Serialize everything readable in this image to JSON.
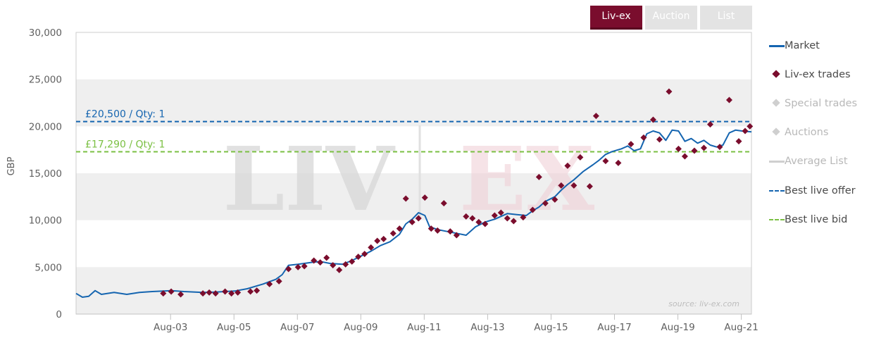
{
  "tabs": [
    {
      "label": "Liv-ex",
      "active": true
    },
    {
      "label": "Auction",
      "active": false
    },
    {
      "label": "List",
      "active": false
    }
  ],
  "watermark": {
    "text": "LIV",
    "text2": "EX"
  },
  "source": "source: liv-ex.com",
  "legend": [
    {
      "label": "Market",
      "kind": "line",
      "color": "#1565b0",
      "dim": false
    },
    {
      "label": "Liv-ex trades",
      "kind": "diamond",
      "color": "#7a0d2d",
      "dim": false
    },
    {
      "label": "Special trades",
      "kind": "diamond",
      "color": "#cfcfcf",
      "dim": true
    },
    {
      "label": "Auctions",
      "kind": "diamond",
      "color": "#cfcfcf",
      "dim": true
    },
    {
      "label": "Average List",
      "kind": "line",
      "color": "#cfcfcf",
      "dim": true
    },
    {
      "label": "Best live offer",
      "kind": "dash",
      "color": "#1565b0",
      "dim": false
    },
    {
      "label": "Best live bid",
      "kind": "dash",
      "color": "#7bc043",
      "dim": false
    }
  ],
  "chart_data": {
    "type": "line",
    "ylabel": "GBP",
    "ylim": [
      0,
      30000
    ],
    "yticks": [
      0,
      5000,
      10000,
      15000,
      20000,
      25000,
      30000
    ],
    "ytick_labels": [
      "0",
      "5,000",
      "10,000",
      "15,000",
      "20,000",
      "25,000",
      "30,000"
    ],
    "xlim": [
      2000.6,
      2021.9
    ],
    "xticks": [
      2003.58,
      2005.58,
      2007.58,
      2009.58,
      2011.58,
      2013.58,
      2015.58,
      2017.58,
      2019.58,
      2021.58
    ],
    "xtick_labels": [
      "Aug-03",
      "Aug-05",
      "Aug-07",
      "Aug-09",
      "Aug-11",
      "Aug-13",
      "Aug-15",
      "Aug-17",
      "Aug-19",
      "Aug-21"
    ],
    "grid": true,
    "legend_position": "right",
    "colors": {
      "market": "#1565b0",
      "trades": "#7a0d2d",
      "offer": "#1565b0",
      "bid": "#7bc043"
    },
    "best_live_offer": {
      "value": 20500,
      "label": "£20,500 / Qty: 1"
    },
    "best_live_bid": {
      "value": 17290,
      "label": "£17,290 / Qty: 1"
    },
    "series": [
      {
        "name": "Market",
        "points": [
          [
            2000.6,
            2200
          ],
          [
            2000.8,
            1800
          ],
          [
            2001.0,
            1900
          ],
          [
            2001.2,
            2500
          ],
          [
            2001.4,
            2100
          ],
          [
            2001.8,
            2300
          ],
          [
            2002.2,
            2100
          ],
          [
            2002.6,
            2300
          ],
          [
            2003.0,
            2400
          ],
          [
            2003.6,
            2500
          ],
          [
            2004.0,
            2400
          ],
          [
            2004.6,
            2300
          ],
          [
            2005.0,
            2350
          ],
          [
            2005.6,
            2450
          ],
          [
            2006.0,
            2700
          ],
          [
            2006.5,
            3200
          ],
          [
            2006.9,
            3700
          ],
          [
            2007.1,
            4200
          ],
          [
            2007.3,
            5200
          ],
          [
            2007.6,
            5300
          ],
          [
            2008.0,
            5500
          ],
          [
            2008.3,
            5600
          ],
          [
            2008.6,
            5400
          ],
          [
            2009.0,
            5300
          ],
          [
            2009.3,
            5700
          ],
          [
            2009.6,
            6200
          ],
          [
            2009.9,
            6700
          ],
          [
            2010.2,
            7300
          ],
          [
            2010.5,
            7700
          ],
          [
            2010.8,
            8500
          ],
          [
            2011.0,
            9600
          ],
          [
            2011.2,
            10100
          ],
          [
            2011.4,
            10800
          ],
          [
            2011.6,
            10500
          ],
          [
            2011.75,
            9300
          ],
          [
            2012.0,
            9000
          ],
          [
            2012.3,
            8800
          ],
          [
            2012.6,
            8600
          ],
          [
            2012.9,
            8400
          ],
          [
            2013.2,
            9300
          ],
          [
            2013.5,
            9800
          ],
          [
            2013.8,
            10100
          ],
          [
            2014.0,
            10400
          ],
          [
            2014.2,
            10700
          ],
          [
            2014.5,
            10600
          ],
          [
            2014.8,
            10500
          ],
          [
            2015.0,
            11000
          ],
          [
            2015.2,
            11400
          ],
          [
            2015.4,
            12000
          ],
          [
            2015.7,
            12500
          ],
          [
            2015.9,
            13200
          ],
          [
            2016.1,
            13800
          ],
          [
            2016.3,
            14300
          ],
          [
            2016.6,
            15200
          ],
          [
            2016.9,
            15900
          ],
          [
            2017.1,
            16400
          ],
          [
            2017.3,
            17000
          ],
          [
            2017.5,
            17300
          ],
          [
            2017.8,
            17600
          ],
          [
            2018.0,
            17900
          ],
          [
            2018.2,
            17400
          ],
          [
            2018.4,
            17600
          ],
          [
            2018.6,
            19200
          ],
          [
            2018.8,
            19500
          ],
          [
            2019.0,
            19300
          ],
          [
            2019.2,
            18500
          ],
          [
            2019.4,
            19600
          ],
          [
            2019.6,
            19500
          ],
          [
            2019.8,
            18400
          ],
          [
            2020.0,
            18700
          ],
          [
            2020.2,
            18200
          ],
          [
            2020.4,
            18500
          ],
          [
            2020.6,
            18000
          ],
          [
            2020.8,
            17800
          ],
          [
            2021.0,
            18000
          ],
          [
            2021.2,
            19300
          ],
          [
            2021.4,
            19600
          ],
          [
            2021.6,
            19500
          ],
          [
            2021.9,
            19400
          ]
        ]
      },
      {
        "name": "Liv-ex trades",
        "points": [
          [
            2003.35,
            2200
          ],
          [
            2003.6,
            2400
          ],
          [
            2003.9,
            2100
          ],
          [
            2004.6,
            2200
          ],
          [
            2004.8,
            2300
          ],
          [
            2005.0,
            2200
          ],
          [
            2005.3,
            2400
          ],
          [
            2005.5,
            2200
          ],
          [
            2005.7,
            2300
          ],
          [
            2006.1,
            2400
          ],
          [
            2006.3,
            2500
          ],
          [
            2006.7,
            3200
          ],
          [
            2007.0,
            3500
          ],
          [
            2007.3,
            4800
          ],
          [
            2007.6,
            5000
          ],
          [
            2007.8,
            5100
          ],
          [
            2008.1,
            5700
          ],
          [
            2008.3,
            5500
          ],
          [
            2008.5,
            6000
          ],
          [
            2008.7,
            5200
          ],
          [
            2008.9,
            4700
          ],
          [
            2009.1,
            5300
          ],
          [
            2009.3,
            5600
          ],
          [
            2009.5,
            6100
          ],
          [
            2009.7,
            6400
          ],
          [
            2009.9,
            7100
          ],
          [
            2010.1,
            7800
          ],
          [
            2010.3,
            8000
          ],
          [
            2010.6,
            8600
          ],
          [
            2010.8,
            9100
          ],
          [
            2011.0,
            12300
          ],
          [
            2011.2,
            9800
          ],
          [
            2011.4,
            10200
          ],
          [
            2011.6,
            12400
          ],
          [
            2011.8,
            9100
          ],
          [
            2012.0,
            8900
          ],
          [
            2012.2,
            11800
          ],
          [
            2012.4,
            8800
          ],
          [
            2012.6,
            8400
          ],
          [
            2012.9,
            10400
          ],
          [
            2013.1,
            10200
          ],
          [
            2013.3,
            9800
          ],
          [
            2013.5,
            9600
          ],
          [
            2013.8,
            10500
          ],
          [
            2014.0,
            10800
          ],
          [
            2014.2,
            10200
          ],
          [
            2014.4,
            9900
          ],
          [
            2014.7,
            10300
          ],
          [
            2015.0,
            11100
          ],
          [
            2015.2,
            14600
          ],
          [
            2015.4,
            11800
          ],
          [
            2015.7,
            12200
          ],
          [
            2015.9,
            13700
          ],
          [
            2016.1,
            15800
          ],
          [
            2016.3,
            13700
          ],
          [
            2016.5,
            16700
          ],
          [
            2016.8,
            13600
          ],
          [
            2017.0,
            21100
          ],
          [
            2017.3,
            16300
          ],
          [
            2017.7,
            16100
          ],
          [
            2018.1,
            18100
          ],
          [
            2018.5,
            18800
          ],
          [
            2018.8,
            20700
          ],
          [
            2019.0,
            18600
          ],
          [
            2019.3,
            23700
          ],
          [
            2019.6,
            17600
          ],
          [
            2019.8,
            16800
          ],
          [
            2020.1,
            17400
          ],
          [
            2020.4,
            17700
          ],
          [
            2020.6,
            20200
          ],
          [
            2020.9,
            17800
          ],
          [
            2021.2,
            22800
          ],
          [
            2021.5,
            18400
          ],
          [
            2021.7,
            19500
          ],
          [
            2021.85,
            20000
          ]
        ]
      }
    ]
  }
}
